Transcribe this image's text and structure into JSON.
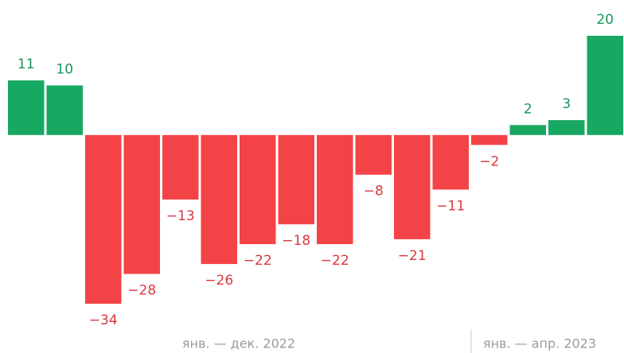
{
  "chart_data": {
    "type": "bar",
    "categories": [
      null,
      null,
      null,
      null,
      null,
      null,
      null,
      null,
      null,
      null,
      null,
      null,
      null,
      null,
      null,
      null
    ],
    "values": [
      11,
      10,
      -34,
      -28,
      -13,
      -26,
      -22,
      -18,
      -22,
      -8,
      -21,
      -11,
      -2,
      2,
      3,
      20
    ],
    "value_labels": [
      "11",
      "10",
      "−34",
      "−28",
      "−13",
      "−26",
      "−22",
      "−18",
      "−22",
      "−8",
      "−21",
      "−11",
      "−2",
      "2",
      "3",
      "20"
    ],
    "positive_color": "#17a862",
    "negative_color": "#f44346",
    "positive_label_color": "#17965a",
    "negative_label_color": "#d8383b",
    "x_groups": [
      "янв. — дек. 2022",
      "янв. — апр. 2023"
    ]
  }
}
